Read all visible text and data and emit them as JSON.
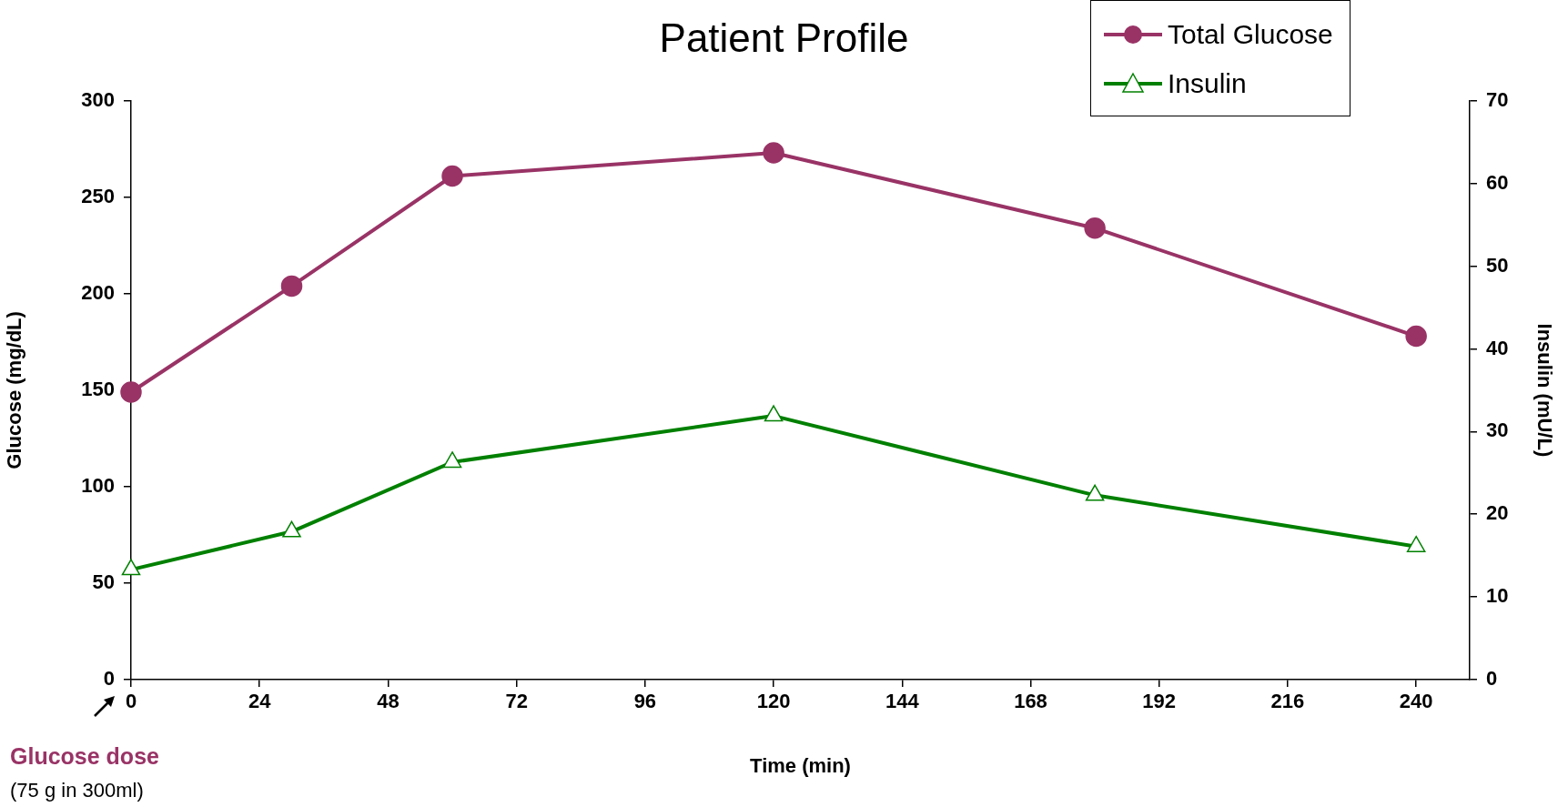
{
  "chart_data": {
    "type": "line",
    "title": "Patient Profile",
    "xlabel": "Time (min)",
    "ylabel": "Glucose (mg/dL)",
    "y2label": "Insulin (mU/L)",
    "x": [
      0,
      30,
      60,
      120,
      180,
      240
    ],
    "xlim": [
      0,
      250
    ],
    "xticks": [
      0,
      24,
      48,
      72,
      96,
      120,
      144,
      168,
      192,
      216,
      240
    ],
    "ylim": [
      0,
      300
    ],
    "yticks": [
      0,
      50,
      100,
      150,
      200,
      250,
      300
    ],
    "y2lim": [
      0,
      70
    ],
    "y2ticks": [
      0,
      10,
      20,
      30,
      40,
      50,
      60,
      70
    ],
    "series": [
      {
        "name": "Total Glucose",
        "color": "#993366",
        "marker": "circle",
        "values": [
          149,
          204,
          261,
          273,
          234,
          178
        ]
      },
      {
        "name": "Insulin",
        "color": "#008000",
        "marker": "triangle",
        "axis": "y2",
        "values": [
          13.3,
          17.9,
          26.3,
          31.9,
          22.3,
          16.1
        ]
      }
    ],
    "grid": false,
    "legend": "top right",
    "line_style": "solid",
    "annotations": [
      "Glucose dose",
      "(75 g in 300ml)"
    ]
  }
}
